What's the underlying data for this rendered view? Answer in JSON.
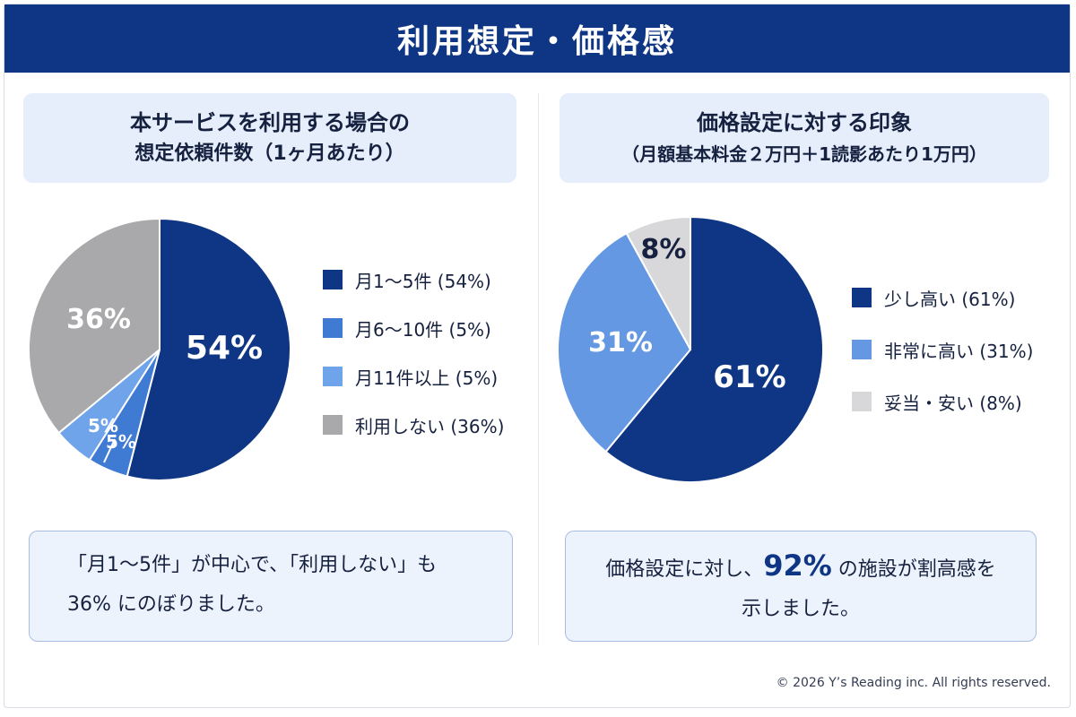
{
  "header": {
    "title": "利用想定・価格感"
  },
  "left_panel": {
    "title_line1": "本サービスを利用する場合の",
    "title_line2": "想定依頼件数（1ヶ月あたり）",
    "summary_line1": "「月1～5件」が中心で、「利用しない」も",
    "summary_line2": "36% にのぼりました。"
  },
  "right_panel": {
    "title_line1": "価格設定に対する印象",
    "title_line2": "（月額基本料金２万円＋1読影あたり1万円）",
    "summary_pre": "価格設定に対し、",
    "summary_highlight": "92%",
    "summary_post": " の施設が割高感を",
    "summary_line2": "示しました。"
  },
  "chart_data": [
    {
      "type": "pie",
      "title": "本サービスを利用する場合の想定依頼件数（1ヶ月あたり）",
      "slices": [
        {
          "label": "月1～5件",
          "legend": "月1～5件 (54%)",
          "value": 54,
          "display": "54%",
          "color": "#0f3685"
        },
        {
          "label": "月6～10件",
          "legend": "月6～10件 (5%)",
          "value": 5,
          "display": "5%",
          "color": "#3f7ad3"
        },
        {
          "label": "月11件以上",
          "legend": "月11件以上 (5%)",
          "value": 5,
          "display": "5%",
          "color": "#6fa3ea"
        },
        {
          "label": "利用しない",
          "legend": "利用しない (36%)",
          "value": 36,
          "display": "36%",
          "color": "#a9a9ab"
        }
      ],
      "legend_placement": "right"
    },
    {
      "type": "pie",
      "title": "価格設定に対する印象（月額基本料金２万円＋1読影あたり1万円）",
      "slices": [
        {
          "label": "少し高い",
          "legend": "少し高い (61%)",
          "value": 61,
          "display": "61%",
          "color": "#0f3685"
        },
        {
          "label": "非常に高い",
          "legend": "非常に高い (31%)",
          "value": 31,
          "display": "31%",
          "color": "#6598e2"
        },
        {
          "label": "妥当・安い",
          "legend": "妥当・安い (8%)",
          "value": 8,
          "display": "8%",
          "color": "#d8d8da"
        }
      ],
      "legend_placement": "right"
    }
  ],
  "footer": {
    "copyright": "© 2026 Y’s Reading inc. All rights reserved."
  }
}
